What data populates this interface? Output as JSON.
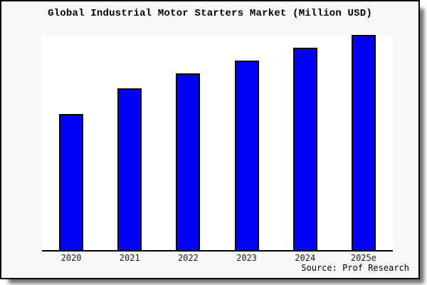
{
  "header": {
    "title": "Global Industrial Motor Starters Market (Million USD)"
  },
  "footer": {
    "source": "Source: Prof Research"
  },
  "colors": {
    "bar_fill": "#0101fa",
    "bar_border": "#000000",
    "card_background": "#f8f8f8",
    "plot_background": "#ffffff",
    "axis": "#000000",
    "frame_border": "#000000"
  },
  "chart_data": {
    "type": "bar",
    "title": "Global Industrial Motor Starters Market (Million USD)",
    "categories": [
      "2020",
      "2021",
      "2022",
      "2023",
      "2024",
      "2025e"
    ],
    "values": [
      63,
      75,
      82,
      88,
      94,
      100
    ],
    "value_note": "no y-axis shown; values estimated from bar heights relative to tallest bar (2025e = 100)",
    "xlabel": "",
    "ylabel": "",
    "ylim": [
      0,
      100
    ],
    "grid": false,
    "legend": false,
    "source": "Source: Prof Research"
  }
}
